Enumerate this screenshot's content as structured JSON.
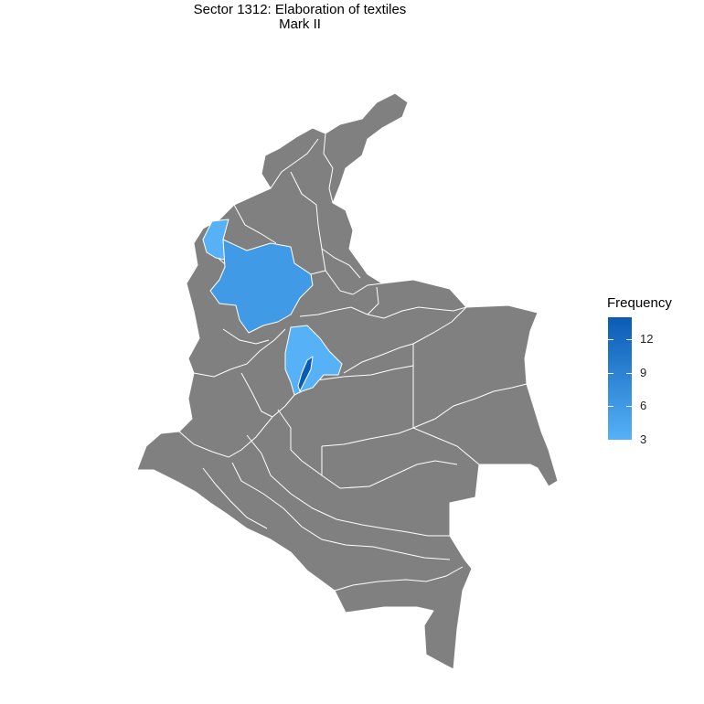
{
  "title": {
    "line1": "Sector 1312: Elaboration of textiles",
    "line2": "Mark II"
  },
  "legend": {
    "title": "Frequency",
    "ticks": [
      "12",
      "9",
      "6",
      "3"
    ],
    "tick_values": [
      12,
      9,
      6,
      3
    ],
    "range": [
      3,
      14
    ],
    "color_low": "#56B1F7",
    "color_high": "#0A5BB5",
    "no_data_color": "#808080"
  },
  "regions": [
    {
      "name": "antioquia",
      "frequency": 6
    },
    {
      "name": "cordoba",
      "frequency": 3
    },
    {
      "name": "cundinamarca",
      "frequency": 3
    },
    {
      "name": "bogota",
      "frequency": 14
    }
  ],
  "colors": {
    "background": "#ffffff",
    "border": "#ffffff",
    "no_data": "#808080"
  }
}
